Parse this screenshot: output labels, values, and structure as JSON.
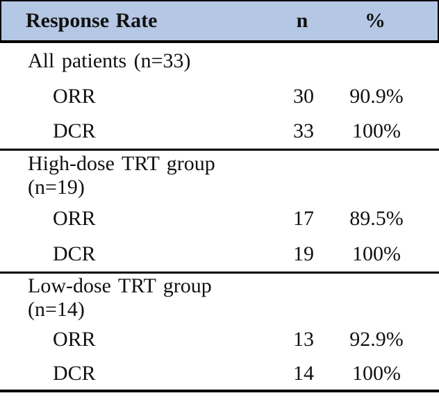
{
  "table": {
    "header": {
      "label": "Response Rate",
      "n": "n",
      "pct": "%"
    },
    "sections": [
      {
        "group": "All patients (n=33)",
        "rows": [
          {
            "label": "ORR",
            "n": "30",
            "pct": "90.9%"
          },
          {
            "label": "DCR",
            "n": "33",
            "pct": "100%"
          }
        ]
      },
      {
        "group": "High-dose TRT group (n=19)",
        "rows": [
          {
            "label": "ORR",
            "n": "17",
            "pct": "89.5%"
          },
          {
            "label": "DCR",
            "n": "19",
            "pct": "100%"
          }
        ]
      },
      {
        "group": "Low-dose TRT group (n=14)",
        "rows": [
          {
            "label": "ORR",
            "n": "13",
            "pct": "92.9%"
          },
          {
            "label": "DCR",
            "n": "14",
            "pct": "100%"
          }
        ]
      }
    ],
    "colors": {
      "header_bg": "#b4c7e4",
      "border": "#000000"
    }
  }
}
